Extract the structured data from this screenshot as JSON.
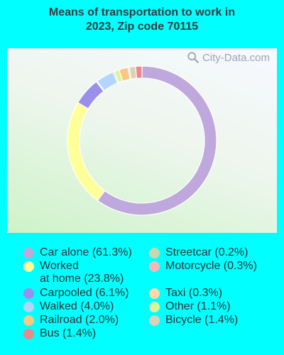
{
  "chart_data": {
    "type": "pie",
    "title": "Means of transportation to work in 2023, Zip code 70115",
    "title_lines": [
      "Means of transportation to work in",
      "2023, Zip code 70115"
    ],
    "unit": "%",
    "slices": [
      {
        "label": "Car alone (61.3%)",
        "name": "Car alone",
        "value": 61.3,
        "color": "#BFA8DC"
      },
      {
        "label": "Worked at home (23.8%)",
        "label_lines": [
          "Worked",
          "at home (23.8%)"
        ],
        "name": "Worked at home",
        "value": 23.8,
        "color": "#FFFF99"
      },
      {
        "label": "Carpooled (6.1%)",
        "name": "Carpooled",
        "value": 6.1,
        "color": "#9A8FEB"
      },
      {
        "label": "Streetcar (0.2%)",
        "name": "Streetcar",
        "value": 0.2,
        "color": "#C7D8B0"
      },
      {
        "label": "Walked (4.0%)",
        "name": "Walked",
        "value": 4.0,
        "color": "#B3D5FF"
      },
      {
        "label": "Motorcycle (0.3%)",
        "name": "Motorcycle",
        "value": 0.3,
        "color": "#F3B9B9"
      },
      {
        "label": "Other (1.1%)",
        "name": "Other",
        "value": 1.1,
        "color": "#D9F59B"
      },
      {
        "label": "Railroad (2.0%)",
        "name": "Railroad",
        "value": 2.0,
        "color": "#FAC882"
      },
      {
        "label": "Taxi (0.3%)",
        "name": "Taxi",
        "value": 0.3,
        "color": "#FFD9A8"
      },
      {
        "label": "Bicycle (1.4%)",
        "name": "Bicycle",
        "value": 1.4,
        "color": "#D8D3B8"
      },
      {
        "label": "Bus (1.4%)",
        "name": "Bus",
        "value": 1.4,
        "color": "#E88A8A"
      }
    ],
    "legend_left": [
      0,
      1,
      2,
      4,
      7,
      10
    ],
    "legend_right": [
      3,
      5,
      8,
      6,
      9
    ]
  },
  "watermark": {
    "text": "City-Data.com",
    "icon": "search-icon"
  }
}
